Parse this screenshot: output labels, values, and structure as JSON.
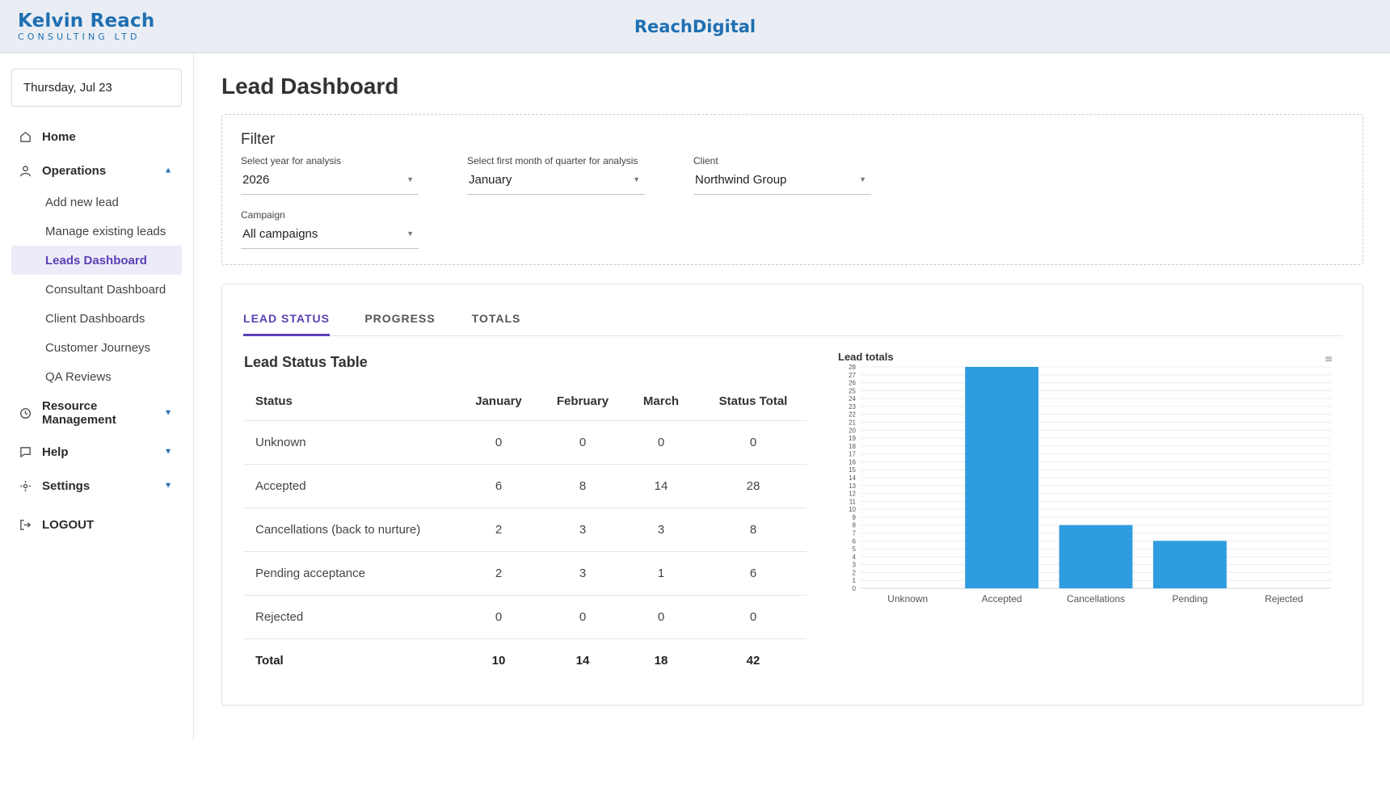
{
  "header": {
    "logo_main": "Kelvin Reach",
    "logo_sub": "CONSULTING LTD",
    "brand": "ReachDigital"
  },
  "sidebar": {
    "date": "Thursday, Jul 23",
    "home": "Home",
    "operations": "Operations",
    "operations_items": [
      "Add new lead",
      "Manage existing leads",
      "Leads Dashboard",
      "Consultant Dashboard",
      "Client Dashboards",
      "Customer Journeys",
      "QA Reviews"
    ],
    "resource_line1": "Resource",
    "resource_line2": "Management",
    "help": "Help",
    "settings": "Settings",
    "logout": "LOGOUT"
  },
  "main": {
    "title": "Lead Dashboard",
    "filter": {
      "title": "Filter",
      "year_label": "Select year for analysis",
      "year_value": "2026",
      "month_label": "Select first month of quarter for analysis",
      "month_value": "January",
      "client_label": "Client",
      "client_value": "Northwind Group",
      "campaign_label": "Campaign",
      "campaign_value": "All campaigns"
    },
    "tabs": [
      "LEAD STATUS",
      "PROGRESS",
      "TOTALS"
    ],
    "table": {
      "title": "Lead Status Table",
      "headers": [
        "Status",
        "January",
        "February",
        "March",
        "Status Total"
      ],
      "rows": [
        [
          "Unknown",
          "0",
          "0",
          "0",
          "0"
        ],
        [
          "Accepted",
          "6",
          "8",
          "14",
          "28"
        ],
        [
          "Cancellations (back to nurture)",
          "2",
          "3",
          "3",
          "8"
        ],
        [
          "Pending acceptance",
          "2",
          "3",
          "1",
          "6"
        ],
        [
          "Rejected",
          "0",
          "0",
          "0",
          "0"
        ]
      ],
      "total": [
        "Total",
        "10",
        "14",
        "18",
        "42"
      ]
    }
  },
  "colors": {
    "accent": "#5b3fb5",
    "brand": "#1f6fb2",
    "bar": "#2f9ce0"
  },
  "icons": {
    "home": "home-icon",
    "operations": "person-icon",
    "resource": "clock-icon",
    "help": "flag-icon",
    "settings": "gear-icon",
    "logout": "logout-icon",
    "chart_menu": "menu-icon"
  },
  "chart_data": {
    "type": "bar",
    "title": "Lead totals",
    "categories": [
      "Unknown",
      "Accepted",
      "Cancellations",
      "Pending",
      "Rejected"
    ],
    "values": [
      0,
      28,
      8,
      6,
      0
    ],
    "ylim": [
      0,
      28
    ],
    "yticks": [
      0,
      1,
      2,
      3,
      4,
      5,
      6,
      7,
      8,
      9,
      10,
      11,
      12,
      13,
      14,
      15,
      16,
      17,
      18,
      19,
      20,
      21,
      22,
      23,
      24,
      25,
      26,
      27,
      28
    ],
    "grid": true,
    "legend": "none"
  }
}
